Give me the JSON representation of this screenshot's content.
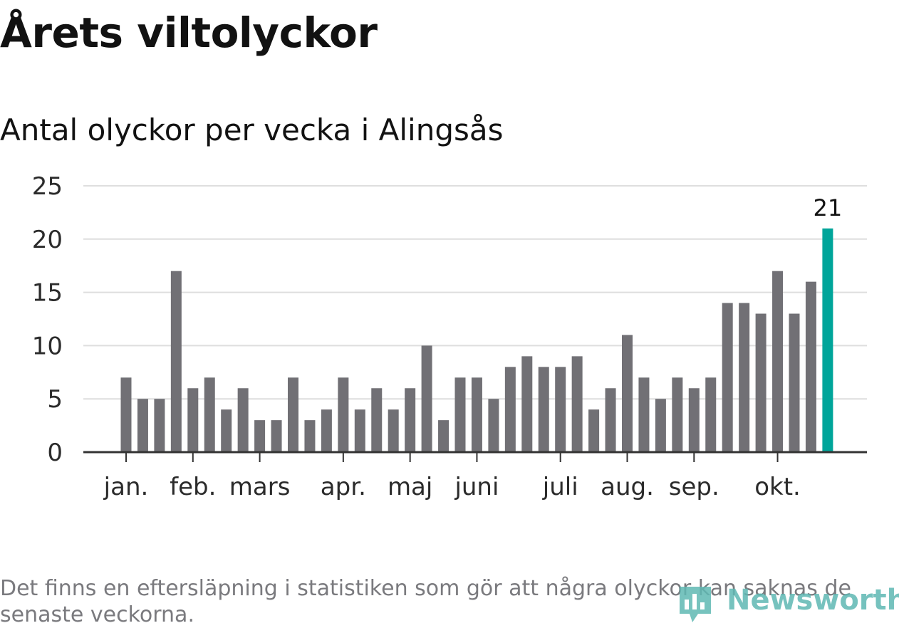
{
  "title": "Årets viltolyckor",
  "subtitle": "Antal olyckor per vecka i Alingsås",
  "note": "Det finns en eftersläpning i statistiken som gör att några olyckor kan saknas de senaste veckorna.",
  "logo_text": "Newsworthy",
  "colors": {
    "bar": "#717075",
    "highlight": "#00a59a",
    "grid": "#dedede",
    "axis": "#333333",
    "tick_label": "#2b2b2b"
  },
  "chart_data": {
    "type": "bar",
    "title": "Årets viltolyckor",
    "subtitle": "Antal olyckor per vecka i Alingsås",
    "xlabel": "",
    "ylabel": "",
    "ylim": [
      0,
      25
    ],
    "yticks": [
      0,
      5,
      10,
      15,
      20,
      25
    ],
    "grid": true,
    "values": [
      7,
      5,
      5,
      17,
      6,
      7,
      4,
      6,
      3,
      3,
      7,
      3,
      4,
      7,
      4,
      6,
      4,
      6,
      10,
      3,
      7,
      7,
      5,
      8,
      9,
      8,
      8,
      9,
      4,
      6,
      11,
      7,
      5,
      7,
      6,
      7,
      14,
      14,
      13,
      17,
      13,
      16,
      21
    ],
    "highlight_index": 42,
    "highlight_label": "21",
    "month_labels": [
      {
        "label": "jan.",
        "week_index": 0
      },
      {
        "label": "feb.",
        "week_index": 4
      },
      {
        "label": "mars",
        "week_index": 8
      },
      {
        "label": "apr.",
        "week_index": 13
      },
      {
        "label": "maj",
        "week_index": 17
      },
      {
        "label": "juni",
        "week_index": 21
      },
      {
        "label": "juli",
        "week_index": 26
      },
      {
        "label": "aug.",
        "week_index": 30
      },
      {
        "label": "sep.",
        "week_index": 34
      },
      {
        "label": "okt.",
        "week_index": 39
      }
    ]
  }
}
